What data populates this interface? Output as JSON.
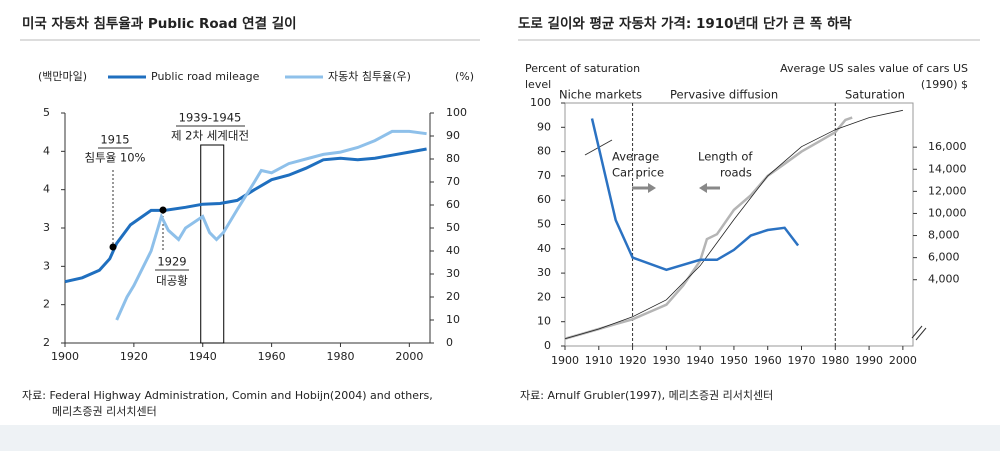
{
  "chart_data": [
    {
      "type": "line",
      "title": "미국 자동차 침투율과 Public Road 연결 길이",
      "y_label": "(백만마일)",
      "y2_label": "(%)",
      "xlim": [
        1900,
        2006
      ],
      "xticks": [
        1900,
        1920,
        1940,
        1960,
        1980,
        2000
      ],
      "ylim": [
        2,
        5
      ],
      "yticks": [
        {
          "value": 2,
          "label": "2"
        },
        {
          "value": 2.5,
          "label": "2"
        },
        {
          "value": 3,
          "label": "3"
        },
        {
          "value": 3.5,
          "label": "3"
        },
        {
          "value": 4,
          "label": "4"
        },
        {
          "value": 4.5,
          "label": "4"
        },
        {
          "value": 5,
          "label": "5"
        }
      ],
      "y2lim": [
        0,
        100
      ],
      "y2ticks": [
        0,
        10,
        20,
        30,
        40,
        50,
        60,
        70,
        80,
        90,
        100
      ],
      "series": [
        {
          "name": "Public road mileage",
          "color": "#1f6fbf",
          "axis": "y",
          "x": [
            1900,
            1905,
            1910,
            1913,
            1915,
            1919,
            1925,
            1929,
            1935,
            1940,
            1945,
            1950,
            1955,
            1960,
            1965,
            1970,
            1975,
            1980,
            1985,
            1990,
            1995,
            2000,
            2005
          ],
          "values": [
            2.8,
            2.85,
            2.95,
            3.1,
            3.3,
            3.54,
            3.73,
            3.73,
            3.77,
            3.81,
            3.82,
            3.86,
            4.0,
            4.13,
            4.19,
            4.28,
            4.39,
            4.41,
            4.39,
            4.41,
            4.45,
            4.49,
            4.53
          ]
        },
        {
          "name": "자동차 침투율(우)",
          "color": "#8ec0ea",
          "axis": "y2",
          "x": [
            1915,
            1918,
            1920,
            1925,
            1928,
            1930,
            1933,
            1935,
            1940,
            1942,
            1944,
            1946,
            1950,
            1955,
            1957,
            1960,
            1965,
            1970,
            1975,
            1980,
            1985,
            1990,
            1995,
            2000,
            2005
          ],
          "values": [
            10,
            20,
            25,
            40,
            55,
            49,
            45,
            50,
            55,
            48,
            45,
            48,
            58,
            70,
            75,
            74,
            78,
            80,
            82,
            83,
            85,
            88,
            92,
            92,
            91
          ]
        }
      ],
      "annotations": [
        "1915",
        "침투율 10%",
        "1929",
        "대공황",
        "1939-1945",
        "제 2차 세계대전"
      ],
      "source": [
        "자료: Federal Highway Administration, Comin and Hobijn(2004) and others,",
        "메리츠증권 리서치센터"
      ]
    },
    {
      "type": "line",
      "title": "도로 길이와 평균 자동차 가격: 1910년대 단가 큰 폭 하락",
      "y_label": [
        "Percent of saturation",
        "level"
      ],
      "y2_label": [
        "Average US sales value of cars US",
        "(1990) $"
      ],
      "xlim": [
        1900,
        2003
      ],
      "xticks": [
        1900,
        1910,
        1920,
        1930,
        1940,
        1950,
        1960,
        1970,
        1980,
        1990,
        2000
      ],
      "ylim": [
        0,
        100
      ],
      "yticks": [
        0,
        10,
        20,
        30,
        40,
        50,
        60,
        70,
        80,
        90,
        100
      ],
      "y2lim": [
        -2000,
        20000
      ],
      "y2ticks": [
        {
          "value": 4000,
          "label": "4,000"
        },
        {
          "value": 6000,
          "label": "6,000"
        },
        {
          "value": 8000,
          "label": "8,000"
        },
        {
          "value": 10000,
          "label": "10,000"
        },
        {
          "value": 12000,
          "label": "12,000"
        },
        {
          "value": 14000,
          "label": "14,000"
        },
        {
          "value": 16000,
          "label": "16,000"
        }
      ],
      "series": [
        {
          "color": "#b5b5b5",
          "axis": "y",
          "x": [
            1900,
            1905,
            1910,
            1915,
            1920,
            1925,
            1930,
            1935,
            1940,
            1942,
            1945,
            1950,
            1955,
            1960,
            1965,
            1970,
            1975,
            1980,
            1983,
            1985
          ],
          "values": [
            3,
            5,
            7,
            9,
            11,
            14,
            17,
            25,
            35,
            44,
            46,
            56,
            62,
            70,
            75,
            80,
            84,
            88,
            93,
            94
          ]
        },
        {
          "color": "#222222",
          "axis": "y",
          "x": [
            1900,
            1910,
            1920,
            1930,
            1940,
            1950,
            1960,
            1970,
            1980,
            1990,
            2000
          ],
          "values": [
            3,
            7,
            12,
            19,
            33,
            52,
            70,
            82,
            89,
            94,
            97
          ]
        },
        {
          "color": "#2b72c2",
          "axis": "y2",
          "x": [
            1908,
            1915,
            1920,
            1930,
            1940,
            1945,
            1950,
            1955,
            1960,
            1965,
            1969
          ],
          "values": [
            18600,
            9400,
            6000,
            4900,
            5800,
            5800,
            6700,
            8000,
            8500,
            8700,
            7100
          ]
        }
      ],
      "regions": [
        "Niche markets",
        "Pervasive diffusion",
        "Saturation"
      ],
      "annotations": [
        "Average",
        "Car price",
        "Length of",
        "roads"
      ],
      "source": [
        "자료: Arnulf Grubler(1997), 메리츠증권 리서치센터"
      ]
    }
  ]
}
